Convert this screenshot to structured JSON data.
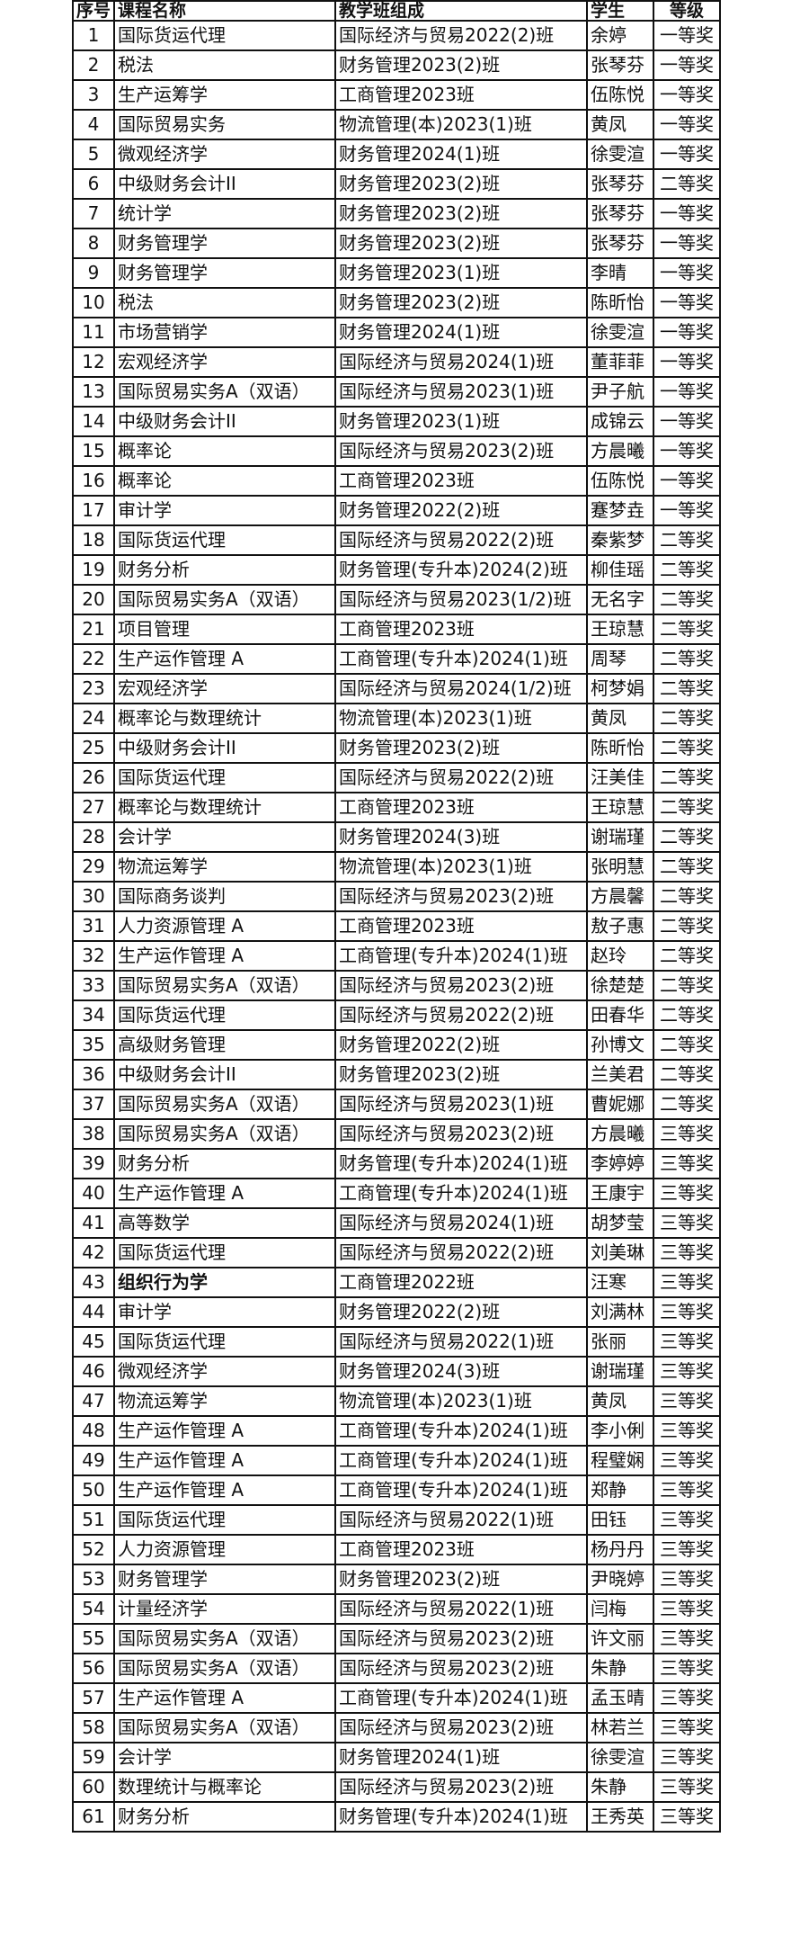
{
  "table": {
    "headers": [
      "序号",
      "课程名称",
      "教学班组成",
      "学生",
      "等级"
    ],
    "bold_course_rows": [
      43
    ],
    "rows": [
      [
        "1",
        "国际货运代理",
        "国际经济与贸易2022(2)班",
        "余婷",
        "一等奖"
      ],
      [
        "2",
        "税法",
        "财务管理2023(2)班",
        "张琴芬",
        "一等奖"
      ],
      [
        "3",
        "生产运筹学",
        "工商管理2023班",
        "伍陈悦",
        "一等奖"
      ],
      [
        "4",
        "国际贸易实务",
        "物流管理(本)2023(1)班",
        "黄凤",
        "一等奖"
      ],
      [
        "5",
        "微观经济学",
        "财务管理2024(1)班",
        "徐雯渲",
        "一等奖"
      ],
      [
        "6",
        "中级财务会计II",
        "财务管理2023(2)班",
        "张琴芬",
        "二等奖"
      ],
      [
        "7",
        "统计学",
        "财务管理2023(2)班",
        "张琴芬",
        "一等奖"
      ],
      [
        "8",
        "财务管理学",
        "财务管理2023(2)班",
        "张琴芬",
        "一等奖"
      ],
      [
        "9",
        "财务管理学",
        "财务管理2023(1)班",
        "李晴",
        "一等奖"
      ],
      [
        "10",
        "税法",
        "财务管理2023(2)班",
        "陈昕怡",
        "一等奖"
      ],
      [
        "11",
        "市场营销学",
        "财务管理2024(1)班",
        "徐雯渲",
        "一等奖"
      ],
      [
        "12",
        "宏观经济学",
        "国际经济与贸易2024(1)班",
        "董菲菲",
        "一等奖"
      ],
      [
        "13",
        "国际贸易实务A（双语）",
        "国际经济与贸易2023(1)班",
        "尹子航",
        "一等奖"
      ],
      [
        "14",
        "中级财务会计II",
        "财务管理2023(1)班",
        "成锦云",
        "一等奖"
      ],
      [
        "15",
        "概率论",
        "国际经济与贸易2023(2)班",
        "方晨曦",
        "一等奖"
      ],
      [
        "16",
        "概率论",
        "工商管理2023班",
        "伍陈悦",
        "一等奖"
      ],
      [
        "17",
        "审计学",
        "财务管理2022(2)班",
        "蹇梦垚",
        "一等奖"
      ],
      [
        "18",
        "国际货运代理",
        "国际经济与贸易2022(2)班",
        "秦紫梦",
        "二等奖"
      ],
      [
        "19",
        "财务分析",
        "财务管理(专升本)2024(2)班",
        "柳佳瑶",
        "二等奖"
      ],
      [
        "20",
        "国际贸易实务A（双语）",
        "国际经济与贸易2023(1/2)班",
        "无名字",
        "二等奖"
      ],
      [
        "21",
        "项目管理",
        "工商管理2023班",
        "王琼慧",
        "二等奖"
      ],
      [
        "22",
        "生产运作管理 A",
        "工商管理(专升本)2024(1)班",
        "周琴",
        "二等奖"
      ],
      [
        "23",
        "宏观经济学",
        "国际经济与贸易2024(1/2)班",
        "柯梦娟",
        "二等奖"
      ],
      [
        "24",
        "概率论与数理统计",
        "物流管理(本)2023(1)班",
        "黄凤",
        "二等奖"
      ],
      [
        "25",
        "中级财务会计II",
        "财务管理2023(2)班",
        "陈昕怡",
        "二等奖"
      ],
      [
        "26",
        "国际货运代理",
        "国际经济与贸易2022(2)班",
        "汪美佳",
        "二等奖"
      ],
      [
        "27",
        "概率论与数理统计",
        "工商管理2023班",
        "王琼慧",
        "二等奖"
      ],
      [
        "28",
        "会计学",
        "财务管理2024(3)班",
        "谢瑞瑾",
        "二等奖"
      ],
      [
        "29",
        "物流运筹学",
        "物流管理(本)2023(1)班",
        "张明慧",
        "二等奖"
      ],
      [
        "30",
        "国际商务谈判",
        "国际经济与贸易2023(2)班",
        "方晨馨",
        "二等奖"
      ],
      [
        "31",
        "人力资源管理 A",
        "工商管理2023班",
        "敖子惠",
        "二等奖"
      ],
      [
        "32",
        "生产运作管理 A",
        "工商管理(专升本)2024(1)班",
        "赵玲",
        "二等奖"
      ],
      [
        "33",
        "国际贸易实务A（双语）",
        "国际经济与贸易2023(2)班",
        "徐楚楚",
        "二等奖"
      ],
      [
        "34",
        "国际货运代理",
        "国际经济与贸易2022(2)班",
        "田春华",
        "二等奖"
      ],
      [
        "35",
        "高级财务管理",
        "财务管理2022(2)班",
        "孙博文",
        "二等奖"
      ],
      [
        "36",
        "中级财务会计II",
        "财务管理2023(2)班",
        "兰美君",
        "二等奖"
      ],
      [
        "37",
        "国际贸易实务A（双语）",
        "国际经济与贸易2023(1)班",
        "曹妮娜",
        "二等奖"
      ],
      [
        "38",
        "国际贸易实务A（双语）",
        "国际经济与贸易2023(2)班",
        "方晨曦",
        "三等奖"
      ],
      [
        "39",
        "财务分析",
        "财务管理(专升本)2024(1)班",
        "李婷婷",
        "三等奖"
      ],
      [
        "40",
        "生产运作管理 A",
        "工商管理(专升本)2024(1)班",
        "王康宇",
        "三等奖"
      ],
      [
        "41",
        "高等数学",
        "国际经济与贸易2024(1)班",
        "胡梦莹",
        "三等奖"
      ],
      [
        "42",
        "国际货运代理",
        "国际经济与贸易2022(2)班",
        "刘美琳",
        "三等奖"
      ],
      [
        "43",
        "组织行为学",
        "工商管理2022班",
        "汪寒",
        "三等奖"
      ],
      [
        "44",
        "审计学",
        "财务管理2022(2)班",
        "刘满林",
        "三等奖"
      ],
      [
        "45",
        "国际货运代理",
        "国际经济与贸易2022(1)班",
        "张丽",
        "三等奖"
      ],
      [
        "46",
        "微观经济学",
        "财务管理2024(3)班",
        "谢瑞瑾",
        "三等奖"
      ],
      [
        "47",
        "物流运筹学",
        "物流管理(本)2023(1)班",
        "黄凤",
        "三等奖"
      ],
      [
        "48",
        "生产运作管理 A",
        "工商管理(专升本)2024(1)班",
        "李小俐",
        "三等奖"
      ],
      [
        "49",
        "生产运作管理 A",
        "工商管理(专升本)2024(1)班",
        "程璧娴",
        "三等奖"
      ],
      [
        "50",
        "生产运作管理 A",
        "工商管理(专升本)2024(1)班",
        "郑静",
        "三等奖"
      ],
      [
        "51",
        "国际货运代理",
        "国际经济与贸易2022(1)班",
        "田钰",
        "三等奖"
      ],
      [
        "52",
        "人力资源管理",
        "工商管理2023班",
        "杨丹丹",
        "三等奖"
      ],
      [
        "53",
        "财务管理学",
        "财务管理2023(2)班",
        "尹晓婷",
        "三等奖"
      ],
      [
        "54",
        "计量经济学",
        "国际经济与贸易2022(1)班",
        "闫梅",
        "三等奖"
      ],
      [
        "55",
        "国际贸易实务A（双语）",
        "国际经济与贸易2023(2)班",
        "许文丽",
        "三等奖"
      ],
      [
        "56",
        "国际贸易实务A（双语）",
        "国际经济与贸易2023(2)班",
        "朱静",
        "三等奖"
      ],
      [
        "57",
        "生产运作管理 A",
        "工商管理(专升本)2024(1)班",
        "孟玉晴",
        "三等奖"
      ],
      [
        "58",
        "国际贸易实务A（双语）",
        "国际经济与贸易2023(2)班",
        "林若兰",
        "三等奖"
      ],
      [
        "59",
        "会计学",
        "财务管理2024(1)班",
        "徐雯渲",
        "三等奖"
      ],
      [
        "60",
        "数理统计与概率论",
        "国际经济与贸易2023(2)班",
        "朱静",
        "三等奖"
      ],
      [
        "61",
        "财务分析",
        "财务管理(专升本)2024(1)班",
        "王秀英",
        "三等奖"
      ]
    ]
  }
}
